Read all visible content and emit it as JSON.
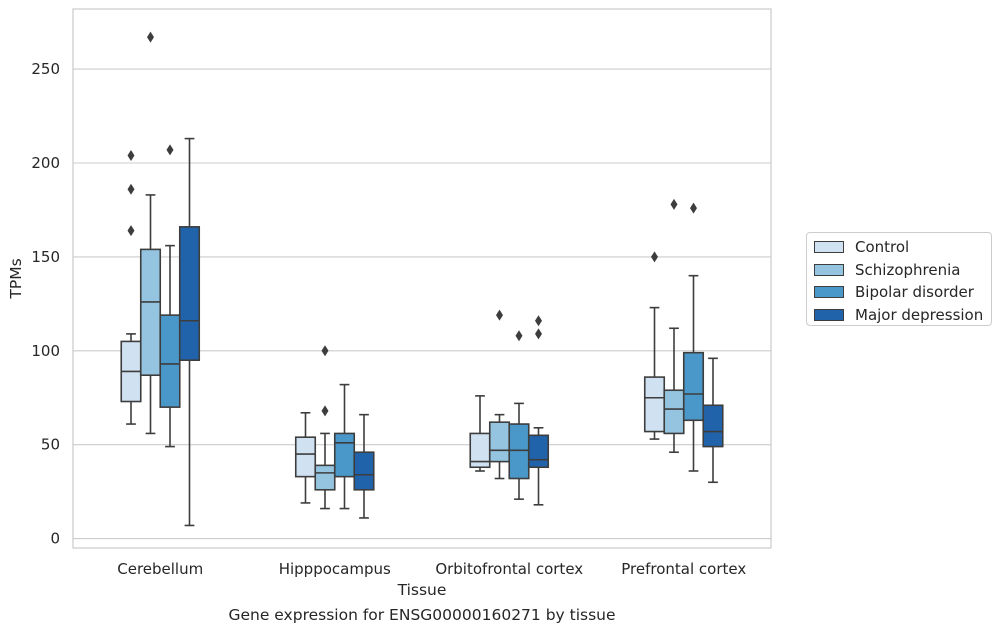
{
  "caption": "Gene expression for ENSG00000160271 by tissue",
  "chart_data": {
    "type": "box",
    "xlabel": "Tissue",
    "ylabel": "TPMs",
    "ylim": [
      -5,
      282
    ],
    "yticks": [
      0,
      50,
      100,
      150,
      200,
      250
    ],
    "grid": "horizontal",
    "legend_placement": "outside-right",
    "categories": [
      "Cerebellum",
      "Hipppocampus",
      "Orbitofrontal cortex",
      "Prefrontal cortex"
    ],
    "series": [
      {
        "name": "Control",
        "color": "#d0e1f2",
        "boxes": [
          {
            "whislo": 61,
            "q1": 73,
            "med": 89,
            "q3": 105,
            "whishi": 109,
            "fliers": [
              164,
              186,
              204
            ]
          },
          {
            "whislo": 19,
            "q1": 33,
            "med": 45,
            "q3": 54,
            "whishi": 67,
            "fliers": []
          },
          {
            "whislo": 36,
            "q1": 38,
            "med": 41,
            "q3": 56,
            "whishi": 76,
            "fliers": []
          },
          {
            "whislo": 53,
            "q1": 57,
            "med": 75,
            "q3": 86,
            "whishi": 123,
            "fliers": [
              150
            ]
          }
        ]
      },
      {
        "name": "Schizophrenia",
        "color": "#94c4df",
        "boxes": [
          {
            "whislo": 56,
            "q1": 87,
            "med": 126,
            "q3": 154,
            "whishi": 183,
            "fliers": [
              267
            ]
          },
          {
            "whislo": 16,
            "q1": 26,
            "med": 35,
            "q3": 39,
            "whishi": 56,
            "fliers": [
              68,
              100
            ]
          },
          {
            "whislo": 32,
            "q1": 41,
            "med": 47,
            "q3": 62,
            "whishi": 66,
            "fliers": [
              119
            ]
          },
          {
            "whislo": 46,
            "q1": 56,
            "med": 69,
            "q3": 79,
            "whishi": 112,
            "fliers": [
              178
            ]
          }
        ]
      },
      {
        "name": "Bipolar disorder",
        "color": "#4a98c9",
        "boxes": [
          {
            "whislo": 49,
            "q1": 70,
            "med": 93,
            "q3": 119,
            "whishi": 156,
            "fliers": [
              207
            ]
          },
          {
            "whislo": 16,
            "q1": 33,
            "med": 51,
            "q3": 56,
            "whishi": 82,
            "fliers": []
          },
          {
            "whislo": 21,
            "q1": 32,
            "med": 47,
            "q3": 61,
            "whishi": 72,
            "fliers": [
              108
            ]
          },
          {
            "whislo": 36,
            "q1": 63,
            "med": 77,
            "q3": 99,
            "whishi": 140,
            "fliers": [
              176
            ]
          }
        ]
      },
      {
        "name": "Major depression",
        "color": "#2163aa",
        "boxes": [
          {
            "whislo": 7,
            "q1": 95,
            "med": 116,
            "q3": 166,
            "whishi": 213,
            "fliers": []
          },
          {
            "whislo": 11,
            "q1": 26,
            "med": 34,
            "q3": 46,
            "whishi": 66,
            "fliers": []
          },
          {
            "whislo": 18,
            "q1": 38,
            "med": 42,
            "q3": 55,
            "whishi": 59,
            "fliers": [
              109,
              116
            ]
          },
          {
            "whislo": 30,
            "q1": 49,
            "med": 57,
            "q3": 71,
            "whishi": 96,
            "fliers": []
          }
        ]
      }
    ]
  }
}
